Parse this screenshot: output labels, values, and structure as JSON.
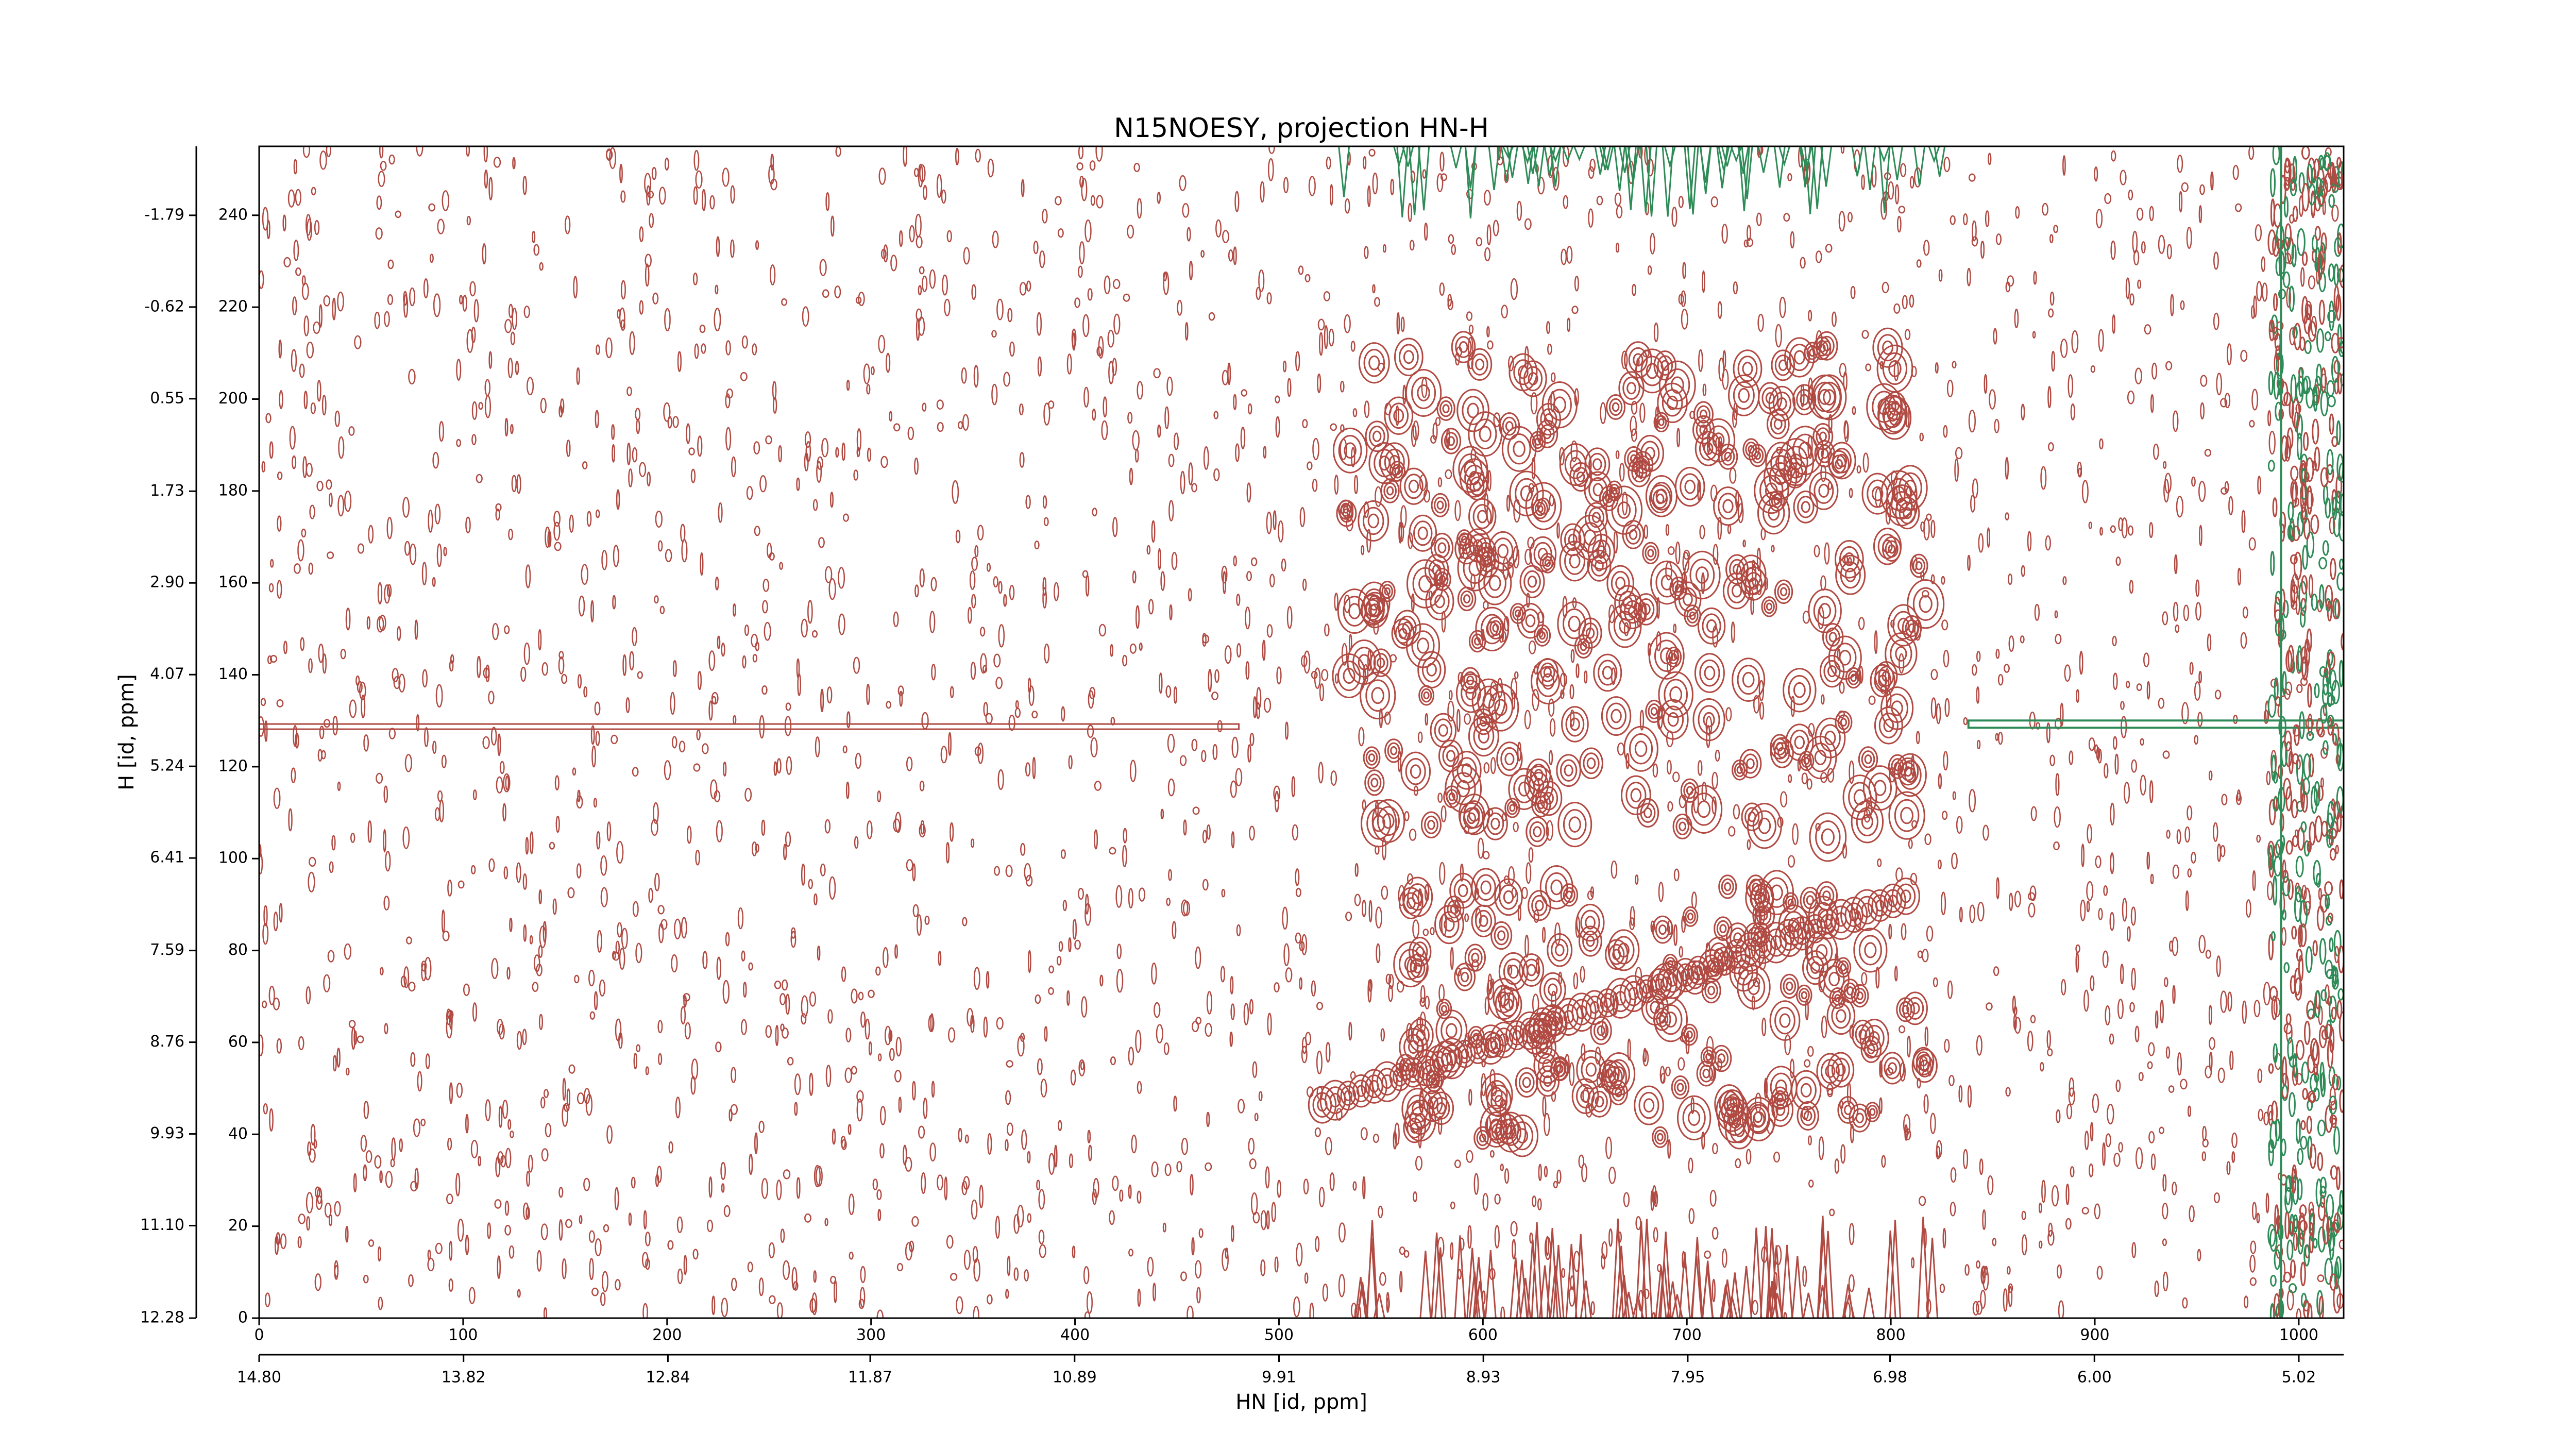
{
  "chart_data": {
    "type": "contour",
    "title": "N15NOESY, projection HN-H",
    "x_label": "HN [id, ppm]",
    "y_label": "H [id, ppm]",
    "xlim": [
      0,
      1022
    ],
    "xticks": [
      0,
      100,
      200,
      300,
      400,
      500,
      600,
      700,
      800,
      900,
      1000
    ],
    "x2lim": [
      14.8,
      4.805
    ],
    "x2ticks": [
      {
        "value": 14.8,
        "label": "14.80"
      },
      13.82,
      12.84,
      11.87,
      10.89,
      9.91,
      8.93,
      7.95,
      6.98,
      {
        "value": 6.0,
        "label": "6.00"
      },
      5.02
    ],
    "ylim": [
      0,
      255
    ],
    "yticks": [
      0,
      20,
      40,
      60,
      80,
      100,
      120,
      140,
      160,
      180,
      200,
      220,
      240
    ],
    "y2lim": [
      12.28,
      -2.67
    ],
    "y2ticks": [
      12.28,
      {
        "value": 11.1,
        "label": "11.10"
      },
      9.93,
      8.76,
      7.59,
      6.41,
      5.24,
      4.07,
      {
        "value": 2.9,
        "label": "2.90"
      },
      1.73,
      0.55,
      -0.62,
      -1.79
    ],
    "colors": {
      "positive": "#b04a42",
      "negative": "#2e8b57"
    }
  }
}
